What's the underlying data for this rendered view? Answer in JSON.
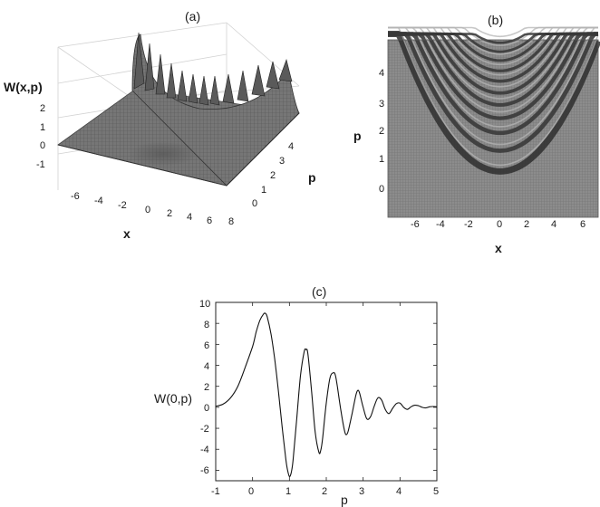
{
  "figure": {
    "panel_a": {
      "label": "(a)",
      "z_label": "W(x,p)",
      "x_label": "x",
      "p_label": "p",
      "z_ticks": [
        "2",
        "1",
        "0",
        "-1"
      ],
      "x_ticks": [
        "-6",
        "-4",
        "-2",
        "0",
        "2",
        "4",
        "6",
        "8"
      ],
      "p_ticks": [
        "0",
        "1",
        "2",
        "3",
        "4"
      ]
    },
    "panel_b": {
      "label": "(b)",
      "x_label": "x",
      "p_label": "p",
      "p_ticks": [
        "4",
        "3",
        "2",
        "1",
        "0"
      ],
      "x_ticks": [
        "-6",
        "-4",
        "-2",
        "0",
        "2",
        "4",
        "6"
      ]
    },
    "panel_c": {
      "label": "(c)",
      "y_label": "W(0,p)",
      "x_label": "p",
      "y_ticks": [
        "10",
        "8",
        "6",
        "4",
        "2",
        "0",
        "-2",
        "-4",
        "-6"
      ],
      "x_ticks": [
        "-1",
        "0",
        "1",
        "2",
        "3",
        "4",
        "5"
      ]
    }
  },
  "colors": {
    "surface": "#6b6b6b",
    "density_bg": "#8a8a8a",
    "ink": "#1a1a1a"
  },
  "chart_data": [
    {
      "type": "surface",
      "panel": "(a)",
      "xlabel": "x",
      "ylabel": "p",
      "zlabel": "W(x,p)",
      "xlim": [
        -7,
        8
      ],
      "ylim": [
        -1,
        5
      ],
      "zlim": [
        -1,
        2
      ],
      "description_of_data": "Wigner function with parabolic ridge of oscillating peaks"
    },
    {
      "type": "heatmap",
      "panel": "(b)",
      "xlabel": "x",
      "ylabel": "p",
      "xlim": [
        -8,
        7
      ],
      "ylim": [
        -1,
        5
      ],
      "fringe_minimum_p": [
        0.55,
        1.25,
        1.85,
        2.35,
        2.8,
        3.2,
        3.6,
        3.95,
        4.3,
        4.6,
        4.9
      ]
    },
    {
      "type": "line",
      "panel": "(c)",
      "xlabel": "p",
      "ylabel": "W(0,p)",
      "xlim": [
        -1,
        5
      ],
      "ylim": [
        -7,
        10
      ],
      "x": [
        -1.0,
        -0.8,
        -0.6,
        -0.4,
        -0.2,
        0.0,
        0.1,
        0.2,
        0.3,
        0.35,
        0.4,
        0.5,
        0.6,
        0.7,
        0.8,
        0.9,
        0.95,
        1.0,
        1.05,
        1.1,
        1.2,
        1.3,
        1.4,
        1.45,
        1.5,
        1.6,
        1.7,
        1.8,
        1.85,
        1.9,
        2.0,
        2.1,
        2.2,
        2.25,
        2.3,
        2.4,
        2.5,
        2.55,
        2.6,
        2.7,
        2.8,
        2.85,
        2.9,
        3.0,
        3.1,
        3.2,
        3.3,
        3.4,
        3.5,
        3.6,
        3.7,
        3.8,
        3.9,
        4.0,
        4.1,
        4.2,
        4.3,
        4.4,
        4.5,
        4.6,
        4.7,
        4.8,
        4.9,
        5.0
      ],
      "y": [
        0.1,
        0.3,
        0.9,
        2.0,
        3.8,
        5.8,
        7.2,
        8.3,
        8.9,
        8.95,
        8.6,
        7.0,
        4.6,
        1.6,
        -1.8,
        -4.9,
        -6.0,
        -6.6,
        -6.2,
        -5.0,
        -1.0,
        3.0,
        5.3,
        5.5,
        5.1,
        1.6,
        -2.4,
        -4.3,
        -4.1,
        -3.0,
        0.4,
        2.8,
        3.3,
        3.0,
        2.0,
        -0.4,
        -2.3,
        -2.6,
        -2.2,
        -0.6,
        1.1,
        1.6,
        1.4,
        0.0,
        -1.1,
        -0.9,
        0.1,
        0.9,
        0.7,
        -0.2,
        -0.6,
        -0.1,
        0.35,
        0.4,
        0.0,
        -0.2,
        0.05,
        0.2,
        0.15,
        0.0,
        -0.05,
        0.05,
        0.08,
        0.05
      ]
    }
  ]
}
